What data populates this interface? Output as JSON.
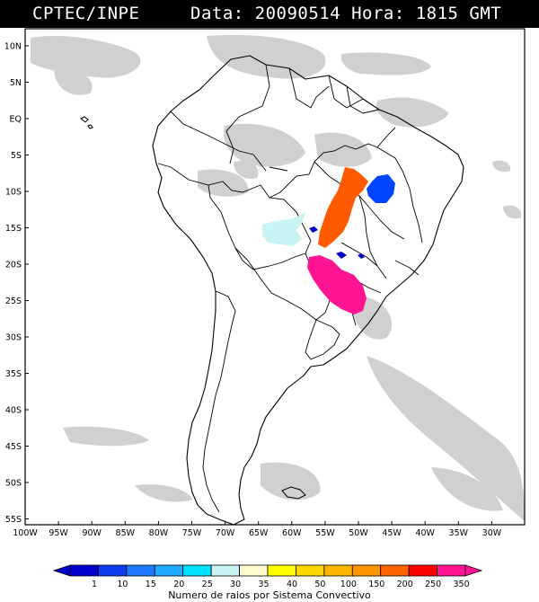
{
  "header": {
    "source": "CPTEC/INPE",
    "datetime": "Data: 20090514 Hora: 1815 GMT"
  },
  "map": {
    "lat_labels": [
      "10N",
      "5N",
      "EQ",
      "5S",
      "10S",
      "15S",
      "20S",
      "25S",
      "30S",
      "35S",
      "40S",
      "45S",
      "50S",
      "55S"
    ],
    "lon_labels": [
      "100W",
      "95W",
      "90W",
      "85W",
      "80W",
      "75W",
      "70W",
      "65W",
      "60W",
      "55W",
      "50W",
      "45W",
      "40W",
      "35W",
      "30W"
    ],
    "lat_range": [
      -56,
      12
    ],
    "lon_range": [
      -100,
      -27
    ],
    "cloud_color": "#c4c4c4",
    "border_color": "#000000"
  },
  "lightning_systems": [
    {
      "category": "200",
      "color": "#ff5a00"
    },
    {
      "category": "350",
      "color": "#ff1493"
    },
    {
      "category": "10",
      "color": "#0044ff"
    },
    {
      "category": "1",
      "color": "#0000cc"
    },
    {
      "category": "30",
      "color": "#c8f4f4"
    }
  ],
  "colorbar": {
    "title": "Numero de raios por Sistema Convectivo",
    "ticks": [
      "1",
      "10",
      "15",
      "20",
      "25",
      "30",
      "35",
      "40",
      "50",
      "100",
      "150",
      "200",
      "250",
      "350"
    ],
    "colors": [
      "#0000cc",
      "#0b3cf0",
      "#1e78ff",
      "#1eaaff",
      "#00e0ff",
      "#c8f4f4",
      "#fffacd",
      "#ffff00",
      "#ffd700",
      "#ffb400",
      "#ff9600",
      "#ff6400",
      "#ff0000",
      "#ff1493"
    ]
  }
}
